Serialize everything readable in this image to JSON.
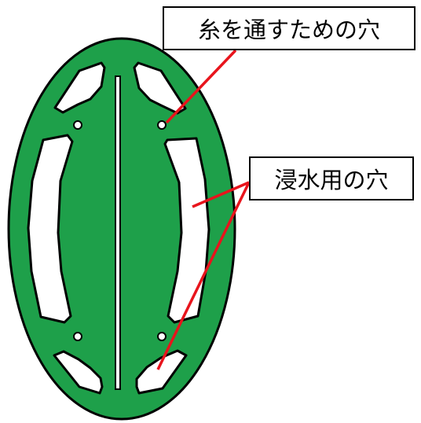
{
  "labels": {
    "thread_hole": "糸を通すための穴",
    "water_hole": "浸水用の穴"
  },
  "colors": {
    "body_green": "#1ea04a",
    "outline": "#000000",
    "pointer_red": "#e8141c",
    "hole_fill": "#ffffff"
  }
}
